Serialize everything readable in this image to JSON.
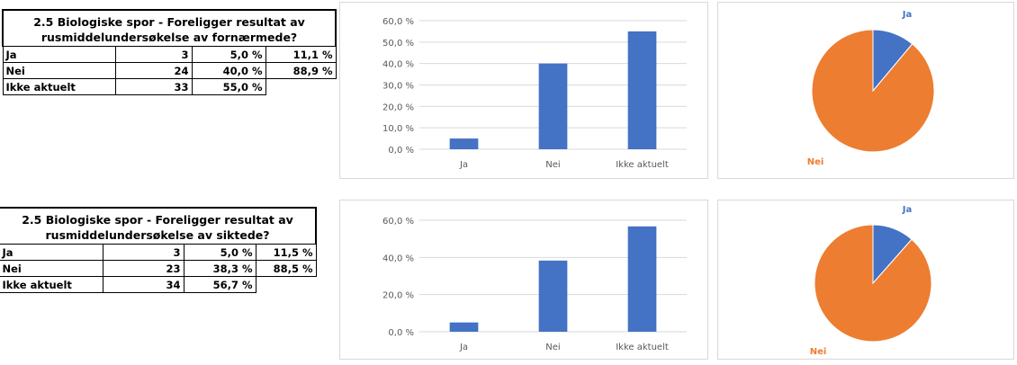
{
  "tables": [
    {
      "title": "2.5 Biologiske spor - Foreligger resultat av rusmiddelundersøkelse av fornærmede?",
      "rows": [
        {
          "label": "Ja",
          "count": "3",
          "pct": "5,0 %",
          "pct2": "11,1 %"
        },
        {
          "label": "Nei",
          "count": "24",
          "pct": "40,0 %",
          "pct2": "88,9 %"
        },
        {
          "label": "Ikke aktuelt",
          "count": "33",
          "pct": "55,0 %",
          "pct2": ""
        }
      ]
    },
    {
      "title": "2.5 Biologiske spor - Foreligger resultat av rusmiddelundersøkelse av siktede?",
      "rows": [
        {
          "label": "Ja",
          "count": "3",
          "pct": "5,0 %",
          "pct2": "11,5 %"
        },
        {
          "label": "Nei",
          "count": "23",
          "pct": "38,3 %",
          "pct2": "88,5 %"
        },
        {
          "label": "Ikke aktuelt",
          "count": "34",
          "pct": "56,7 %",
          "pct2": ""
        }
      ]
    }
  ],
  "chart_data": [
    {
      "type": "bar",
      "categories": [
        "Ja",
        "Nei",
        "Ikke aktuelt"
      ],
      "values": [
        5.0,
        40.0,
        55.0
      ],
      "ylim": [
        0,
        60
      ],
      "yticks": [
        "0,0 %",
        "10,0 %",
        "20,0 %",
        "30,0 %",
        "40,0 %",
        "50,0 %",
        "60,0 %"
      ],
      "ytick_values": [
        0,
        10,
        20,
        30,
        40,
        50,
        60
      ],
      "grid": true,
      "color": "#4472C4"
    },
    {
      "type": "pie",
      "categories": [
        "Ja",
        "Nei"
      ],
      "values": [
        11.1,
        88.9
      ],
      "labels": [
        "Ja",
        "Nei"
      ],
      "colors": [
        "#4472C4",
        "#ED7D31"
      ]
    },
    {
      "type": "bar",
      "categories": [
        "Ja",
        "Nei",
        "Ikke aktuelt"
      ],
      "values": [
        5.0,
        38.3,
        56.7
      ],
      "ylim": [
        0,
        60
      ],
      "yticks": [
        "0,0 %",
        "20,0 %",
        "40,0 %",
        "60,0 %"
      ],
      "ytick_values": [
        0,
        20,
        40,
        60
      ],
      "grid": true,
      "color": "#4472C4"
    },
    {
      "type": "pie",
      "categories": [
        "Ja",
        "Nei"
      ],
      "values": [
        11.5,
        88.5
      ],
      "labels": [
        "Ja",
        "Nei"
      ],
      "colors": [
        "#4472C4",
        "#ED7D31"
      ]
    }
  ]
}
